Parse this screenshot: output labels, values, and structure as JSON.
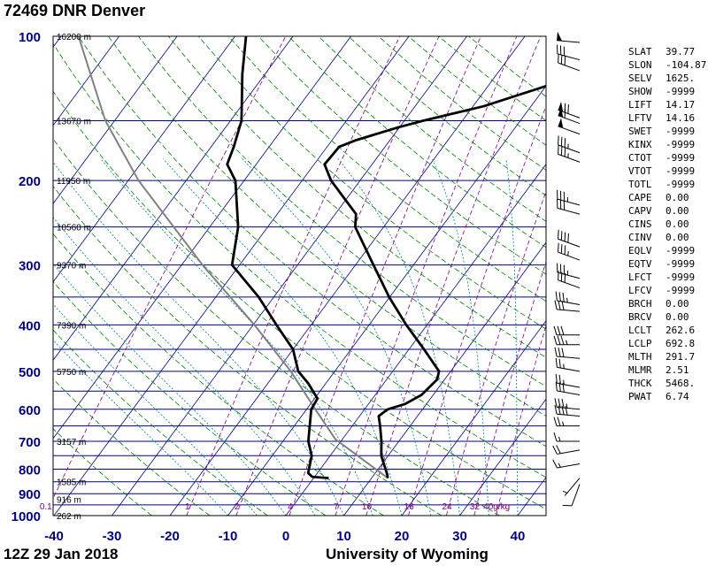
{
  "title": "72469 DNR Denver",
  "footer": {
    "time": "12Z 29 Jan 2018",
    "source": "University of Wyoming"
  },
  "stats": [
    {
      "k": "SLAT",
      "v": "39.77"
    },
    {
      "k": "SLON",
      "v": "-104.87"
    },
    {
      "k": "SELV",
      "v": "1625."
    },
    {
      "k": "SHOW",
      "v": "-9999"
    },
    {
      "k": "LIFT",
      "v": "14.17"
    },
    {
      "k": "LFTV",
      "v": "14.16"
    },
    {
      "k": "SWET",
      "v": "-9999"
    },
    {
      "k": "KINX",
      "v": "-9999"
    },
    {
      "k": "CTOT",
      "v": "-9999"
    },
    {
      "k": "VTOT",
      "v": "-9999"
    },
    {
      "k": "TOTL",
      "v": "-9999"
    },
    {
      "k": "CAPE",
      "v": "0.00"
    },
    {
      "k": "CAPV",
      "v": "0.00"
    },
    {
      "k": "CINS",
      "v": "0.00"
    },
    {
      "k": "CINV",
      "v": "0.00"
    },
    {
      "k": "EQLV",
      "v": "-9999"
    },
    {
      "k": "EQTV",
      "v": "-9999"
    },
    {
      "k": "LFCT",
      "v": "-9999"
    },
    {
      "k": "LFCV",
      "v": "-9999"
    },
    {
      "k": "BRCH",
      "v": "0.00"
    },
    {
      "k": "BRCV",
      "v": "0.00"
    },
    {
      "k": "LCLT",
      "v": "262.6"
    },
    {
      "k": "LCLP",
      "v": "692.8"
    },
    {
      "k": "MLTH",
      "v": "291.7"
    },
    {
      "k": "MLMR",
      "v": "2.51"
    },
    {
      "k": "THCK",
      "v": "5468."
    },
    {
      "k": "PWAT",
      "v": "6.74"
    }
  ],
  "chart_data": {
    "type": "line",
    "x_axis": {
      "range": [
        -40,
        45
      ],
      "ticks": [
        -40,
        -30,
        -20,
        -10,
        0,
        10,
        20,
        30,
        40
      ]
    },
    "y_axis": {
      "scale": "log",
      "range": [
        1000,
        100
      ],
      "ticks": [
        100,
        200,
        300,
        400,
        500,
        600,
        700,
        800,
        900,
        1000
      ]
    },
    "height_labels": [
      {
        "p": 100,
        "label": "16200 m"
      },
      {
        "p": 150,
        "label": "13670 m"
      },
      {
        "p": 200,
        "label": "11950 m"
      },
      {
        "p": 250,
        "label": "10560 m"
      },
      {
        "p": 300,
        "label": "9370 m"
      },
      {
        "p": 400,
        "label": "7390 m"
      },
      {
        "p": 500,
        "label": "5750 m"
      },
      {
        "p": 700,
        "label": "3157 m"
      },
      {
        "p": 850,
        "label": "1585 m"
      },
      {
        "p": 925,
        "label": "916 m"
      },
      {
        "p": 1000,
        "label": "262 m"
      }
    ],
    "mixing_ratio_labels": [
      {
        "w": 0.1,
        "label": "0.1"
      },
      {
        "w": 1,
        "label": "1"
      },
      {
        "w": 2,
        "label": "2"
      },
      {
        "w": 4,
        "label": "4"
      },
      {
        "w": 7,
        "label": "7"
      },
      {
        "w": 10,
        "label": "10"
      },
      {
        "w": 16,
        "label": "16"
      },
      {
        "w": 24,
        "label": "24"
      },
      {
        "w": 32,
        "label": "32"
      },
      {
        "w": 40,
        "label": "40g/kg"
      }
    ],
    "series": [
      {
        "name": "",
        "color": "#000000",
        "points": [
          {
            "p": 835,
            "t": 12.8
          },
          {
            "p": 820,
            "t": 12.2
          },
          {
            "p": 750,
            "t": 8.8
          },
          {
            "p": 700,
            "t": 7.0
          },
          {
            "p": 650,
            "t": 4.8
          },
          {
            "p": 620,
            "t": 3.3
          },
          {
            "p": 600,
            "t": 4.0
          },
          {
            "p": 585,
            "t": 6.3
          },
          {
            "p": 560,
            "t": 8.0
          },
          {
            "p": 520,
            "t": 8.7
          },
          {
            "p": 500,
            "t": 8.0
          },
          {
            "p": 450,
            "t": 2.6
          },
          {
            "p": 400,
            "t": -3.6
          },
          {
            "p": 350,
            "t": -10.1
          },
          {
            "p": 300,
            "t": -16.9
          },
          {
            "p": 250,
            "t": -24.9
          },
          {
            "p": 235,
            "t": -26.4
          },
          {
            "p": 200,
            "t": -35.0
          },
          {
            "p": 185,
            "t": -38.2
          },
          {
            "p": 170,
            "t": -37.9
          },
          {
            "p": 165,
            "t": -36.0
          },
          {
            "p": 155,
            "t": -30.3
          },
          {
            "p": 150,
            "t": -26.7
          },
          {
            "p": 140,
            "t": -18.2
          },
          {
            "p": 120,
            "t": -5.2
          },
          {
            "p": 100,
            "t": 7.6
          }
        ]
      },
      {
        "name": "",
        "color": "#000000",
        "points": [
          {
            "p": 835,
            "t": 2.6
          },
          {
            "p": 830,
            "t": -0.4
          },
          {
            "p": 815,
            "t": -1.6
          },
          {
            "p": 750,
            "t": -3.2
          },
          {
            "p": 700,
            "t": -5.6
          },
          {
            "p": 600,
            "t": -9.2
          },
          {
            "p": 570,
            "t": -9.5
          },
          {
            "p": 530,
            "t": -13.0
          },
          {
            "p": 500,
            "t": -16.3
          },
          {
            "p": 450,
            "t": -20.0
          },
          {
            "p": 400,
            "t": -26.0
          },
          {
            "p": 350,
            "t": -32.6
          },
          {
            "p": 300,
            "t": -41.3
          },
          {
            "p": 250,
            "t": -45.1
          },
          {
            "p": 200,
            "t": -51.5
          },
          {
            "p": 185,
            "t": -55.0
          },
          {
            "p": 170,
            "t": -56.1
          },
          {
            "p": 150,
            "t": -58.1
          },
          {
            "p": 120,
            "t": -63.9
          },
          {
            "p": 100,
            "t": -68.1
          }
        ]
      }
    ],
    "parcel": [
      {
        "p": 835,
        "t": 12.8
      },
      {
        "p": 693,
        "t": -1.2
      },
      {
        "p": 600,
        "t": -8.5
      },
      {
        "p": 500,
        "t": -17.6
      },
      {
        "p": 400,
        "t": -29.8
      },
      {
        "p": 300,
        "t": -46.4
      },
      {
        "p": 200,
        "t": -68.2
      },
      {
        "p": 150,
        "t": -81.6
      },
      {
        "p": 100,
        "t": -97.0
      }
    ],
    "wind_barbs": [
      {
        "p": 103,
        "dir": 275,
        "spd": 50
      },
      {
        "p": 112,
        "dir": 285,
        "spd": 30
      },
      {
        "p": 118,
        "dir": 290,
        "spd": 30
      },
      {
        "p": 148,
        "dir": 290,
        "spd": 70
      },
      {
        "p": 152,
        "dir": 290,
        "spd": 60
      },
      {
        "p": 160,
        "dir": 290,
        "spd": 50
      },
      {
        "p": 175,
        "dir": 290,
        "spd": 35
      },
      {
        "p": 183,
        "dir": 290,
        "spd": 35
      },
      {
        "p": 225,
        "dir": 285,
        "spd": 35
      },
      {
        "p": 235,
        "dir": 285,
        "spd": 30
      },
      {
        "p": 275,
        "dir": 290,
        "spd": 40
      },
      {
        "p": 293,
        "dir": 290,
        "spd": 35
      },
      {
        "p": 320,
        "dir": 285,
        "spd": 35
      },
      {
        "p": 335,
        "dir": 290,
        "spd": 30
      },
      {
        "p": 363,
        "dir": 280,
        "spd": 35
      },
      {
        "p": 375,
        "dir": 275,
        "spd": 30
      },
      {
        "p": 420,
        "dir": 270,
        "spd": 30
      },
      {
        "p": 440,
        "dir": 270,
        "spd": 35
      },
      {
        "p": 470,
        "dir": 275,
        "spd": 30
      },
      {
        "p": 500,
        "dir": 280,
        "spd": 25
      },
      {
        "p": 540,
        "dir": 280,
        "spd": 25
      },
      {
        "p": 560,
        "dir": 280,
        "spd": 30
      },
      {
        "p": 600,
        "dir": 275,
        "spd": 35
      },
      {
        "p": 620,
        "dir": 275,
        "spd": 40
      },
      {
        "p": 650,
        "dir": 270,
        "spd": 25
      },
      {
        "p": 700,
        "dir": 270,
        "spd": 15
      },
      {
        "p": 730,
        "dir": 260,
        "spd": 20
      },
      {
        "p": 780,
        "dir": 260,
        "spd": 15
      },
      {
        "p": 835,
        "dir": 220,
        "spd": 5
      },
      {
        "p": 860,
        "dir": 200,
        "spd": 10
      }
    ]
  },
  "colors": {
    "isobar": "#000080",
    "isotherm": "#000080",
    "dry_adiabat": "#008000",
    "moist_adiabat": "#008080",
    "mixing_ratio": "#800080",
    "parcel": "#808080",
    "label_blue": "#000080"
  }
}
